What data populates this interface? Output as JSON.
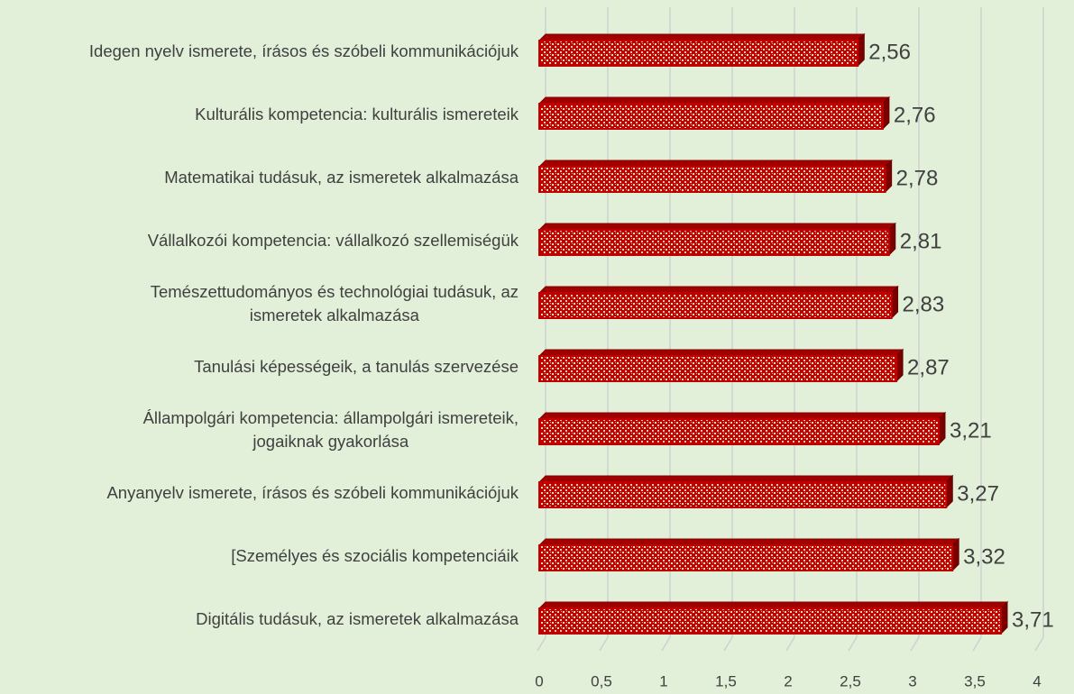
{
  "chart_data": {
    "type": "bar",
    "orientation": "horizontal",
    "categories": [
      "Idegen nyelv ismerete, írásos és szóbeli kommunikációjuk",
      "Kulturális kompetencia: kulturális ismereteik",
      "Matematikai tudásuk, az ismeretek alkalmazása",
      "Vállalkozói kompetencia: vállalkozó szellemiségük",
      "Temészettudományos és technológiai tudásuk, az\nismeretek alkalmazása",
      "Tanulási képességeik, a tanulás szervezése",
      "Állampolgári kompetencia: állampolgári ismereteik,\njogaiknak gyakorlása",
      "Anyanyelv ismerete, írásos és szóbeli kommunikációjuk",
      "[Személyes és szociális kompetenciáik",
      "Digitális tudásuk, az ismeretek alkalmazása"
    ],
    "values": [
      2.56,
      2.76,
      2.78,
      2.81,
      2.83,
      2.87,
      3.21,
      3.27,
      3.32,
      3.71
    ],
    "value_labels": [
      "2,56",
      "2,76",
      "2,78",
      "2,81",
      "2,83",
      "2,87",
      "3,21",
      "3,27",
      "3,32",
      "3,71"
    ],
    "color": "#c00000",
    "xlim": [
      0,
      4
    ],
    "xticks": [
      0,
      {
        "value": 0.5,
        "label": "0,5"
      },
      1,
      {
        "value": 1.5,
        "label": "1,5"
      },
      2,
      {
        "value": 2.5,
        "label": "2,5"
      },
      3,
      {
        "value": 3.5,
        "label": "3,5"
      },
      4
    ],
    "grid": true
  }
}
